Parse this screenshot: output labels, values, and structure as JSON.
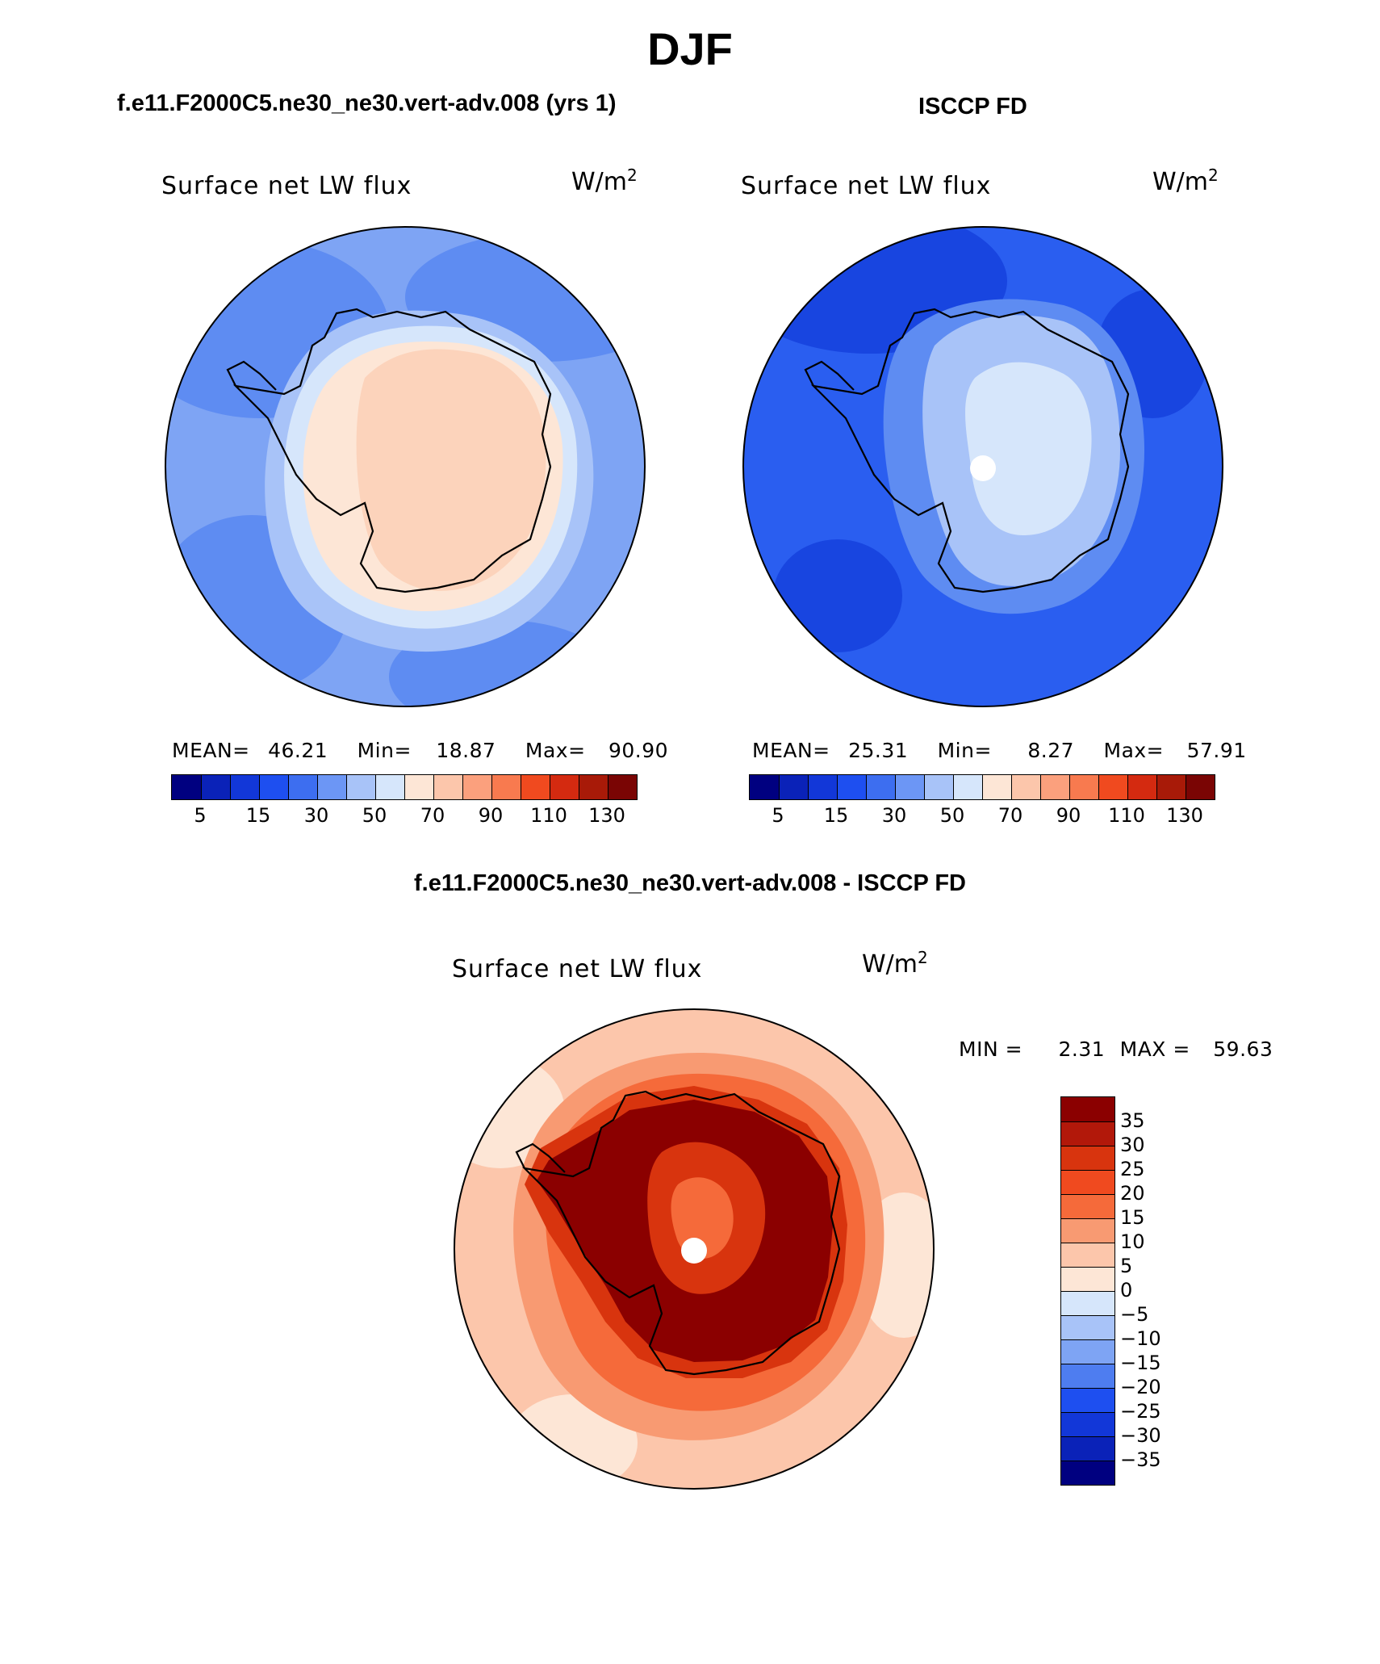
{
  "page": {
    "title": "DJF"
  },
  "top_left": {
    "header": "f.e11.F2000C5.ne30_ne30.vert-adv.008 (yrs 1)",
    "variable": "Surface net LW flux",
    "units": "W/m",
    "units_exp": "2",
    "stats": {
      "mean_label": "MEAN=",
      "mean": "46.21",
      "min_label": "Min=",
      "min": "18.87",
      "max_label": "Max=",
      "max": "90.90"
    }
  },
  "top_right": {
    "header": "ISCCP FD",
    "variable": "Surface net LW flux",
    "units": "W/m",
    "units_exp": "2",
    "stats": {
      "mean_label": "MEAN=",
      "mean": "25.31",
      "min_label": "Min=",
      "min": "8.27",
      "max_label": "Max=",
      "max": "57.91"
    }
  },
  "diff": {
    "header": "f.e11.F2000C5.ne30_ne30.vert-adv.008 - ISCCP FD",
    "variable": "Surface net LW flux",
    "units": "W/m",
    "units_exp": "2",
    "stats": {
      "min_label": "MIN =",
      "min": "2.31",
      "max_label": "MAX =",
      "max": "59.63"
    }
  },
  "colorbar_h": {
    "colors": [
      "#000080",
      "#0a22b8",
      "#1237d8",
      "#1e4ff0",
      "#3d6ef0",
      "#6c96f5",
      "#a8c3f8",
      "#d6e6fb",
      "#fde6d6",
      "#fcc6ab",
      "#fba07d",
      "#f87a4f",
      "#f04a1f",
      "#d42a10",
      "#a81a08",
      "#7a0504"
    ],
    "tick_labels": [
      "5",
      "15",
      "30",
      "50",
      "70",
      "90",
      "110",
      "130"
    ]
  },
  "colorbar_v": {
    "colors": [
      "#8b0000",
      "#b2180a",
      "#d8340e",
      "#f04a1f",
      "#f56a3a",
      "#f89a72",
      "#fcc6ab",
      "#fde6d6",
      "#d6e6fb",
      "#a8c3f8",
      "#7ea4f4",
      "#4e7df0",
      "#1e4ff0",
      "#1237d8",
      "#0a22b8",
      "#000080"
    ],
    "tick_labels": [
      "35",
      "30",
      "25",
      "20",
      "15",
      "10",
      "5",
      "0",
      "−5",
      "−10",
      "−15",
      "−20",
      "−25",
      "−30",
      "−35"
    ]
  },
  "map_colors": {
    "model_ocean": "#7ea4f4",
    "model_outer": "#5e8cf2",
    "model_ring": "#a8c3f8",
    "model_coast": "#d6e6fb",
    "model_land": "#fcd3bb",
    "model_land_edge": "#fde6d6",
    "obs_ocean": "#2a5ef0",
    "obs_dark": "#1845e0",
    "obs_mid": "#5e8cf2",
    "obs_inner": "#a8c3f8",
    "obs_core": "#d6e6fb",
    "diff_ocean": "#fcc6ab",
    "diff_mid": "#f89a72",
    "diff_inner": "#f56a3a",
    "diff_ring": "#d8340e",
    "diff_land": "#8b0000",
    "diff_pale": "#fde6d6"
  }
}
